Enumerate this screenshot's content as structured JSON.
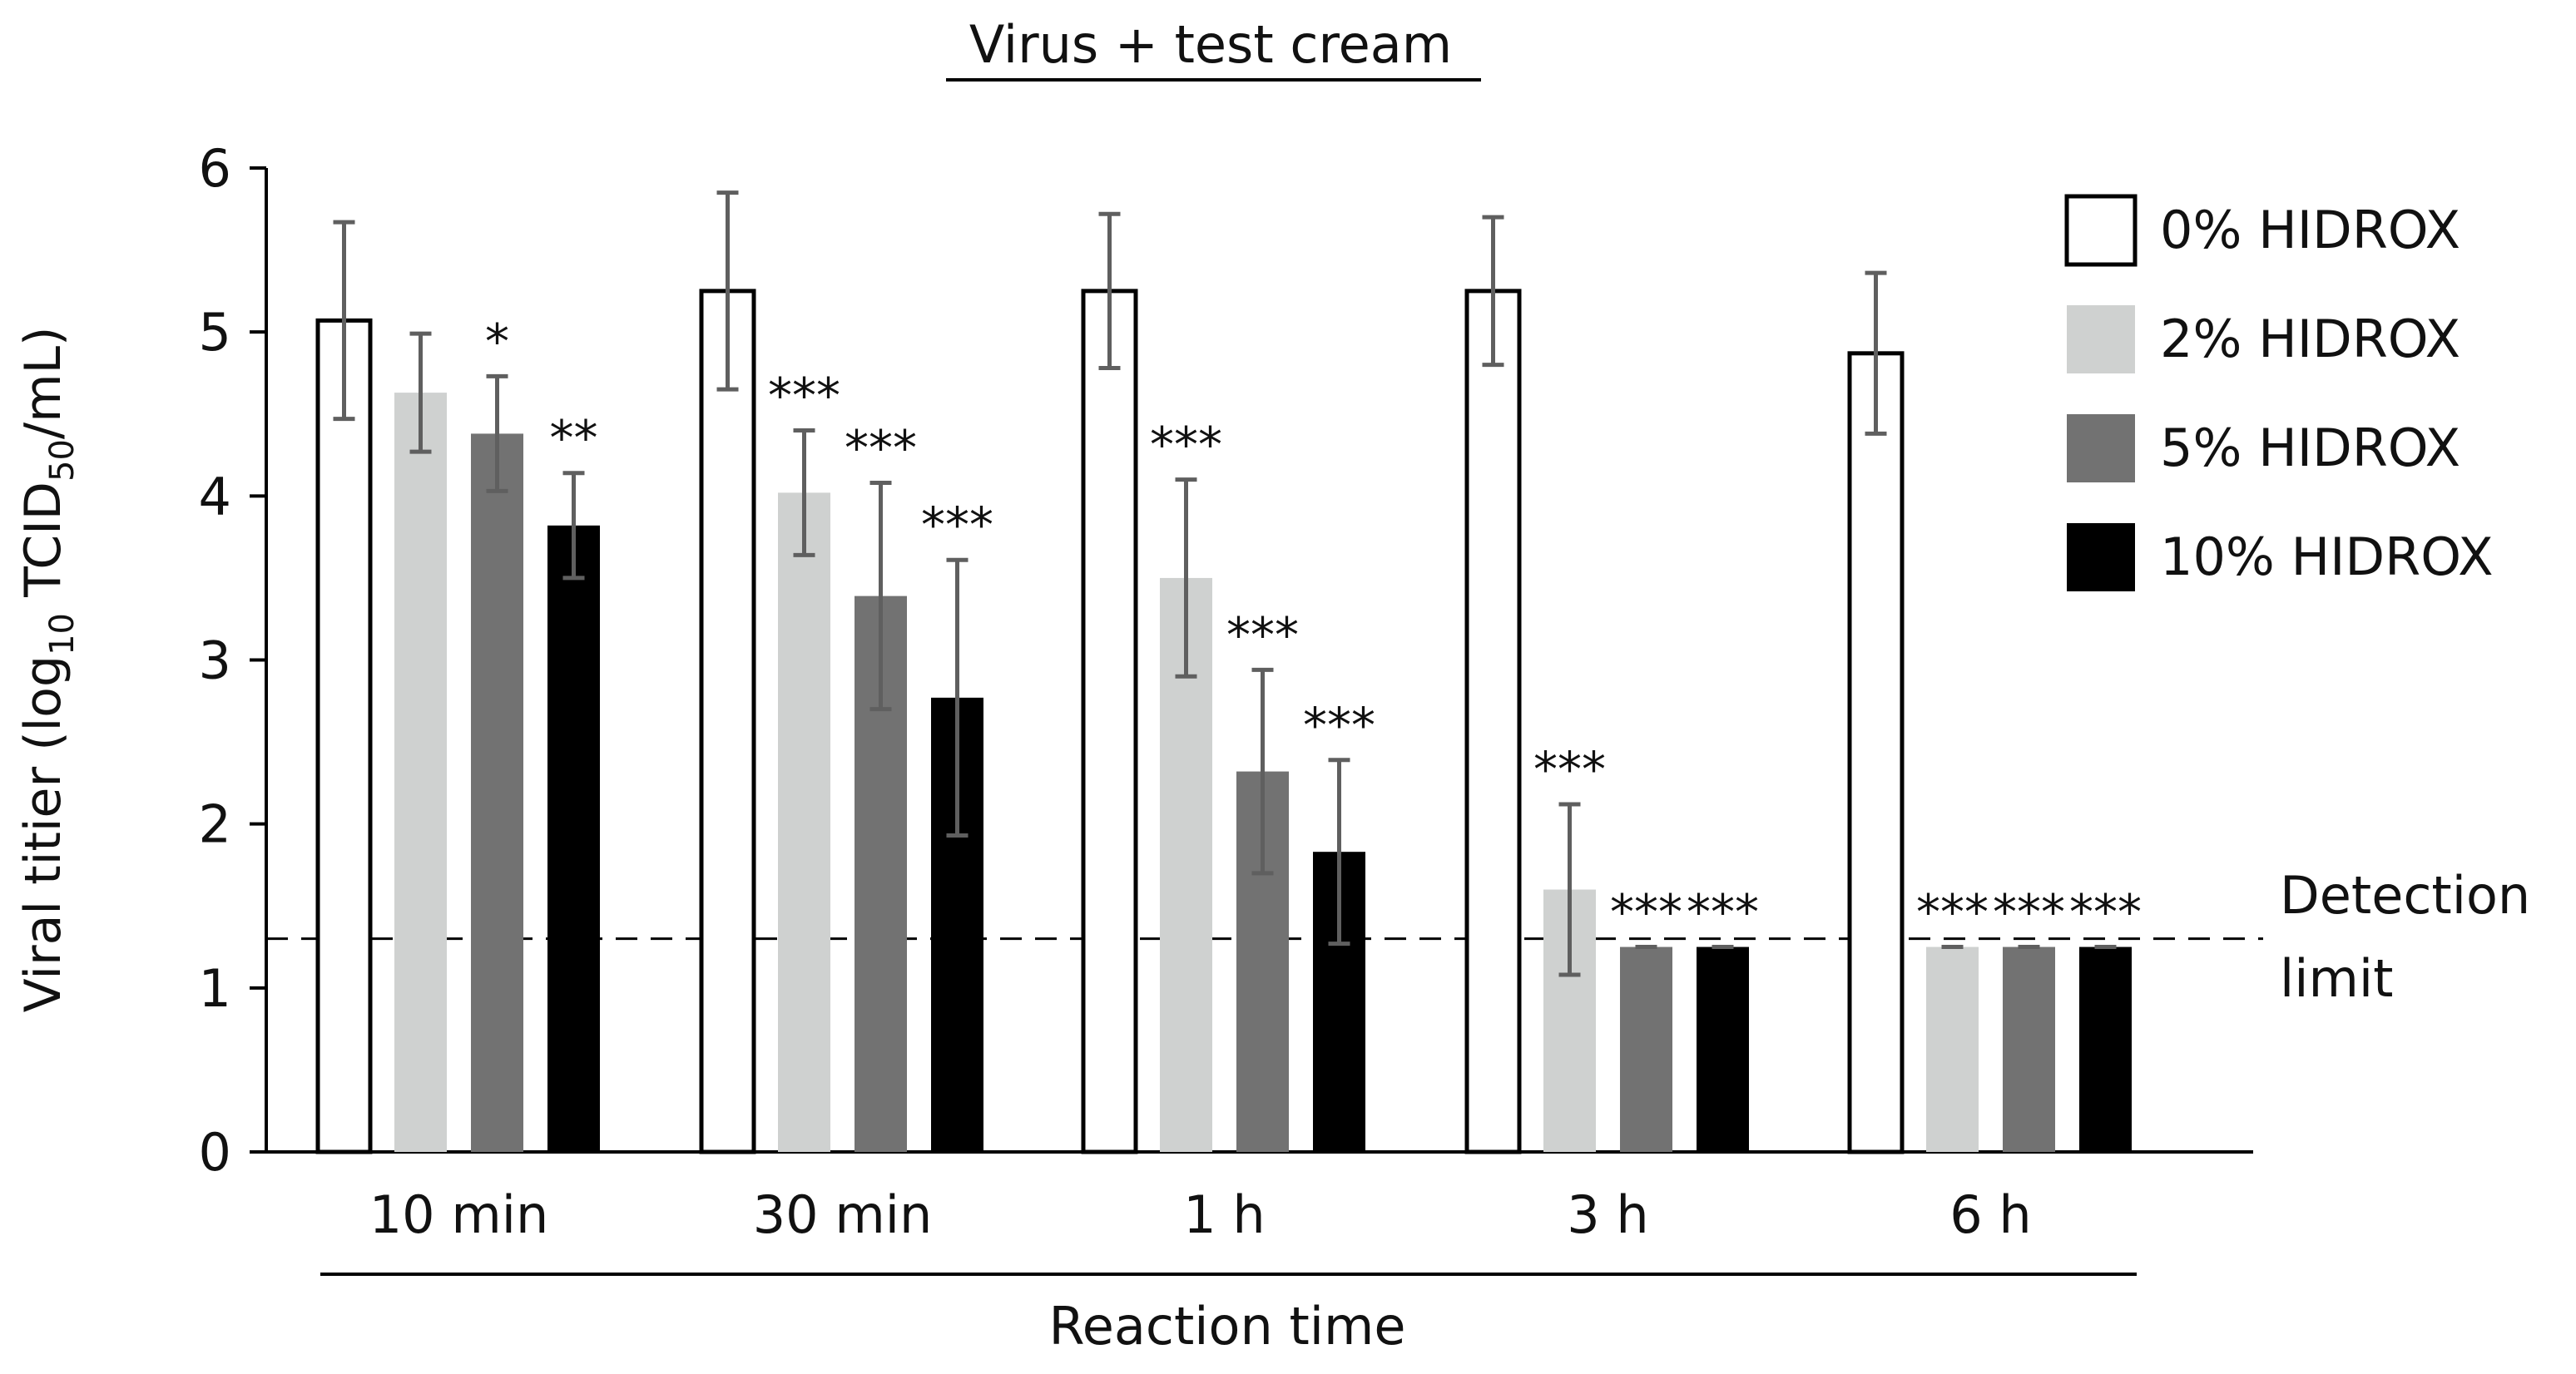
{
  "chart_data": {
    "type": "bar",
    "title": "Virus + test cream",
    "xlabel": "Reaction time",
    "ylabel_parts": {
      "before": "Viral titier (log",
      "sub1": "10",
      "mid": " TCID",
      "sub2": "50",
      "after": "/mL)"
    },
    "categories": [
      "10 min",
      "30 min",
      "1 h",
      "3 h",
      "6 h"
    ],
    "ylim": [
      0,
      6
    ],
    "yticks": [
      "0",
      "1",
      "2",
      "3",
      "4",
      "5",
      "6"
    ],
    "series": [
      {
        "name": "0% HIDROX",
        "fill": "#ffffff",
        "stroke": "#000000",
        "values": [
          5.07,
          5.25,
          5.25,
          5.25,
          4.87
        ],
        "errors": [
          0.6,
          0.6,
          0.47,
          0.45,
          0.49
        ],
        "significance": [
          "",
          "",
          "",
          "",
          ""
        ]
      },
      {
        "name": "2% HIDROX",
        "fill": "#cfd1d0",
        "stroke": "#cfd1d0",
        "values": [
          4.63,
          4.02,
          3.5,
          1.6,
          1.25
        ],
        "errors": [
          0.36,
          0.38,
          0.6,
          0.52,
          0.0
        ],
        "significance": [
          "",
          "***",
          "***",
          "***",
          "***"
        ]
      },
      {
        "name": "5% HIDROX",
        "fill": "#727272",
        "stroke": "#727272",
        "values": [
          4.38,
          3.39,
          2.32,
          1.25,
          1.25
        ],
        "errors": [
          0.35,
          0.69,
          0.62,
          0.0,
          0.0
        ],
        "significance": [
          "*",
          "***",
          "***",
          "***",
          "***"
        ]
      },
      {
        "name": "10% HIDROX",
        "fill": "#000000",
        "stroke": "#000000",
        "values": [
          3.82,
          2.77,
          1.83,
          1.25,
          1.25
        ],
        "errors": [
          0.32,
          0.84,
          0.56,
          0.0,
          0.0
        ],
        "significance": [
          "**",
          "***",
          "***",
          "***",
          "***"
        ]
      }
    ],
    "detection_limit": {
      "value": 1.3,
      "label_line1": "Detection",
      "label_line2": "limit"
    },
    "legend_position": "top-right",
    "grid": false
  }
}
